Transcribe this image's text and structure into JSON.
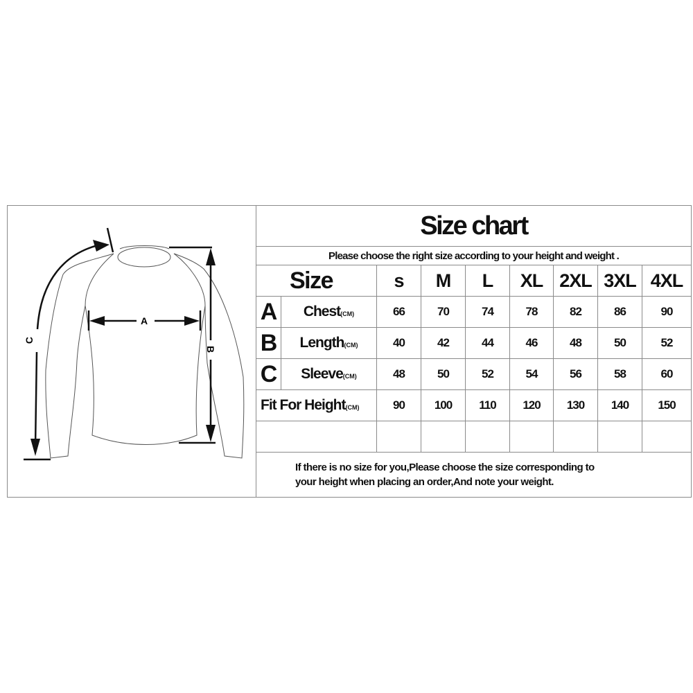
{
  "title": "Size chart",
  "subtitle": "Please choose the right size according to your height and weight .",
  "header": {
    "label": "Size",
    "sizes": [
      "s",
      "M",
      "L",
      "XL",
      "2XL",
      "3XL",
      "4XL"
    ]
  },
  "rows": [
    {
      "letter": "A",
      "label": "Chest",
      "unit": "(CM)",
      "values": [
        "66",
        "70",
        "74",
        "78",
        "82",
        "86",
        "90"
      ]
    },
    {
      "letter": "B",
      "label": "Length",
      "unit": "(CM)",
      "values": [
        "40",
        "42",
        "44",
        "46",
        "48",
        "50",
        "52"
      ]
    },
    {
      "letter": "C",
      "label": "Sleeve",
      "unit": "(CM)",
      "values": [
        "48",
        "50",
        "52",
        "54",
        "56",
        "58",
        "60"
      ]
    }
  ],
  "fit_row": {
    "label": "Fit For Height",
    "unit": "(CM)",
    "values": [
      "90",
      "100",
      "110",
      "120",
      "130",
      "140",
      "150"
    ]
  },
  "note": {
    "line1": "If there is no size for you,Please choose the size corresponding to",
    "line2": "your height when placing an order,And note your weight."
  },
  "diagram": {
    "label_a": "A",
    "label_b": "B",
    "label_c": "C"
  }
}
